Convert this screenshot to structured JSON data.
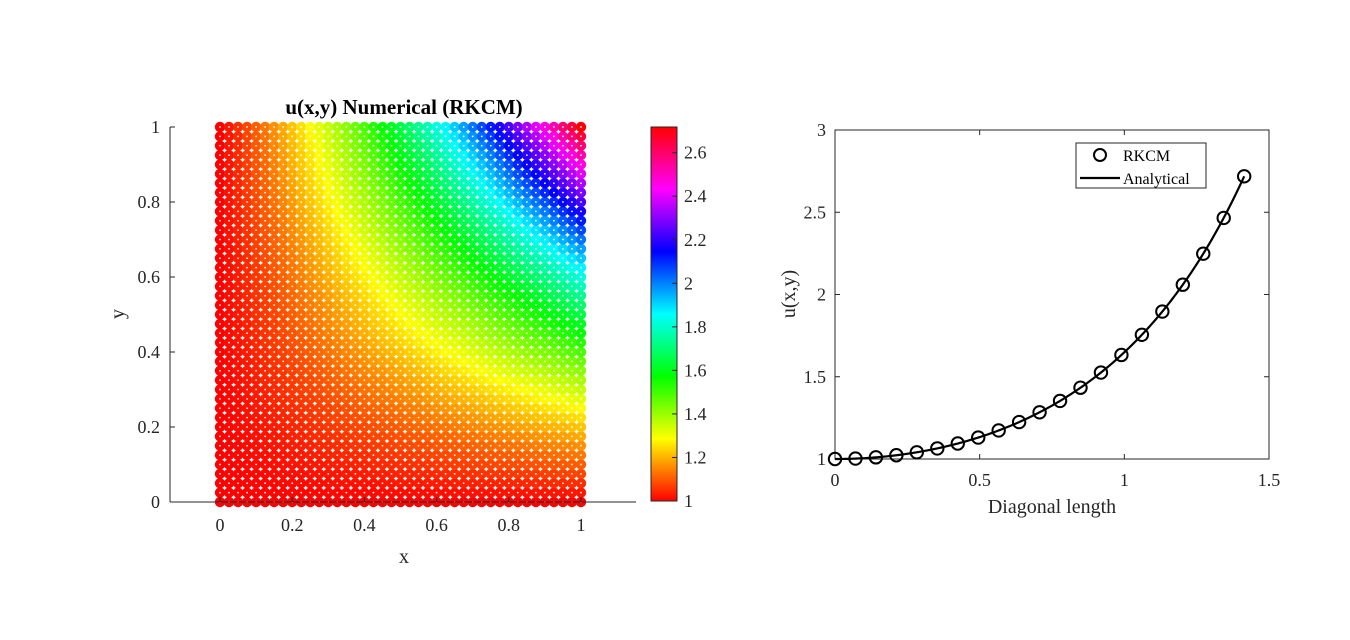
{
  "chart_data": [
    {
      "type": "heatmap",
      "title": "u(x,y) Numerical (RKCM)",
      "xlabel": "x",
      "ylabel": "y",
      "xlim": [
        -0.15,
        1.15
      ],
      "ylim": [
        0,
        1
      ],
      "xticks": [
        0,
        0.2,
        0.4,
        0.6,
        0.8,
        1
      ],
      "yticks": [
        0,
        0.2,
        0.4,
        0.6,
        0.8,
        1
      ],
      "xtick_labels": [
        "0",
        "0.2",
        "0.4",
        "0.6",
        "0.8",
        "1"
      ],
      "ytick_labels": [
        "0",
        "0.2",
        "0.4",
        "0.6",
        "0.8",
        "1"
      ],
      "grid_points_per_side": 41,
      "function": "u = exp(x*y)",
      "value_range": [
        1,
        2.718
      ],
      "colormap": [
        "#ff0000",
        "#ffff00",
        "#00ff00",
        "#00ffff",
        "#0000ff",
        "#ff00ff",
        "#ff0000"
      ],
      "colorbar": {
        "ticks": [
          1,
          1.2,
          1.4,
          1.6,
          1.8,
          2,
          2.2,
          2.4,
          2.6
        ],
        "tick_labels": [
          "1",
          "1.2",
          "1.4",
          "1.6",
          "1.8",
          "2",
          "2.2",
          "2.4",
          "2.6"
        ]
      },
      "node_marker_color": "#ffffff"
    },
    {
      "type": "line",
      "title": "",
      "xlabel": "Diagonal length",
      "ylabel": "u(x,y)",
      "xlim": [
        0,
        1.5
      ],
      "ylim": [
        1,
        3
      ],
      "xticks": [
        0,
        0.5,
        1,
        1.5
      ],
      "yticks": [
        1,
        1.5,
        2,
        2.5,
        3
      ],
      "xtick_labels": [
        "0",
        "0.5",
        "1",
        "1.5"
      ],
      "ytick_labels": [
        "1",
        "1.5",
        "2",
        "2.5",
        "3"
      ],
      "legend_position": "top-right",
      "series": [
        {
          "name": "RKCM",
          "style": "markers",
          "marker": "circle",
          "x": [
            0,
            0.0707,
            0.1414,
            0.2121,
            0.2828,
            0.3536,
            0.4243,
            0.495,
            0.5657,
            0.6364,
            0.7071,
            0.7778,
            0.8485,
            0.9192,
            0.9899,
            1.0607,
            1.1314,
            1.2021,
            1.2728,
            1.3435,
            1.4142
          ],
          "y": [
            1.0,
            1.0025,
            1.01,
            1.0228,
            1.0408,
            1.0645,
            1.0942,
            1.1303,
            1.1735,
            1.2244,
            1.284,
            1.3532,
            1.4333,
            1.5257,
            1.6323,
            1.7551,
            1.8965,
            2.0594,
            2.2479,
            2.4653,
            2.7183
          ]
        },
        {
          "name": "Analytical",
          "style": "line",
          "color": "#000000",
          "function": "u = exp(s^2 / 2)"
        }
      ]
    }
  ]
}
